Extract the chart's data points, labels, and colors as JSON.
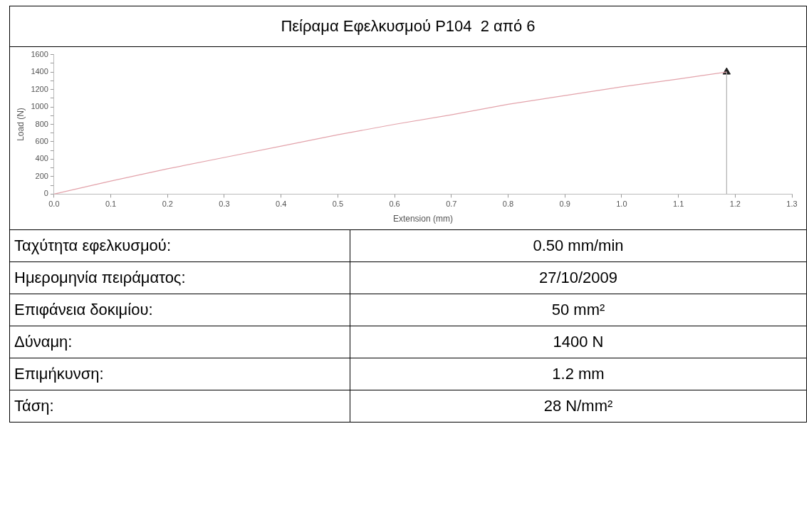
{
  "chart_data": {
    "type": "line",
    "title": "Πείραμα Εφελκυσμού P104  2 από 6",
    "xlabel": "Extension (mm)",
    "ylabel": "Load (N)",
    "xlim": [
      0,
      1.3
    ],
    "xticks": [
      {
        "value": 0,
        "label": "0.0"
      },
      0.1,
      0.2,
      0.3,
      0.4,
      0.5,
      0.6,
      0.7,
      0.8,
      0.9,
      {
        "value": 1,
        "label": "1.0"
      },
      1.1,
      1.2,
      1.3
    ],
    "ylim": [
      0,
      1600
    ],
    "yticks": [
      0,
      {
        "value": 100,
        "label": null
      },
      200,
      {
        "value": 300,
        "label": null
      },
      400,
      {
        "value": 500,
        "label": null
      },
      600,
      {
        "value": 700,
        "label": null
      },
      800,
      {
        "value": 900,
        "label": null
      },
      1000,
      {
        "value": 1100,
        "label": null
      },
      1200,
      {
        "value": 1300,
        "label": null
      },
      1400,
      {
        "value": 1500,
        "label": null
      },
      1600
    ],
    "grid": false,
    "legend": false,
    "series": [
      {
        "type": "line",
        "color": "#e3a3ab",
        "marker": "none",
        "x": [
          0,
          0.1,
          0.2,
          0.3,
          0.4,
          0.5,
          0.6,
          0.7,
          0.8,
          0.9,
          1.0,
          1.1,
          1.185
        ],
        "values": [
          0,
          150,
          290,
          420,
          550,
          680,
          800,
          910,
          1030,
          1130,
          1230,
          1320,
          1400
        ]
      },
      {
        "type": "line",
        "color": "#b0b0b0",
        "marker": "none",
        "x": [
          1.185,
          1.185
        ],
        "values": [
          1400,
          0
        ]
      },
      {
        "type": "scatter",
        "color": "#222222",
        "marker": "triangle",
        "x": [
          1.185
        ],
        "values": [
          1400
        ]
      }
    ],
    "annotations": [
      "Ταχύτητα εφελκυσμού:",
      "0.50 mm/min",
      "Ημερομηνία πειράματος:",
      "27/10/2009",
      "Επιφάνεια δοκιμίου:",
      "50 mm²",
      "Δύναμη:",
      "1400 N",
      "Επιμήκυνση:",
      "1.2 mm",
      "Τάση:",
      "28 N/mm²"
    ]
  }
}
